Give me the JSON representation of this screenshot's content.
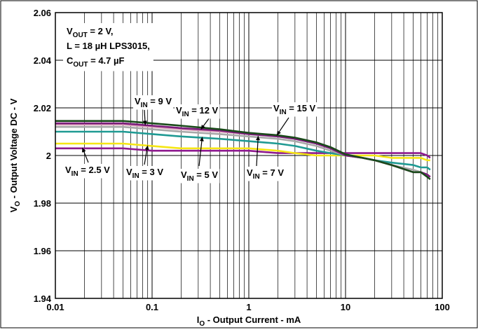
{
  "chart_data": {
    "type": "line",
    "title": "",
    "xlabel": {
      "main": "I",
      "sub": "O",
      "rest": " - Output Current - mA"
    },
    "ylabel": {
      "main": "V",
      "sub": "O",
      "rest": " - Output Voltage DC - V"
    },
    "x_scale": "log",
    "xlim": [
      0.01,
      100
    ],
    "ylim": [
      1.94,
      2.06
    ],
    "x_ticks": [
      0.01,
      0.1,
      1,
      10,
      100
    ],
    "x_tick_labels": [
      "0.01",
      "0.1",
      "1",
      "10",
      "100"
    ],
    "y_ticks": [
      1.94,
      1.96,
      1.98,
      2.0,
      2.02,
      2.04,
      2.06
    ],
    "y_tick_labels": [
      "1.94",
      "1.96",
      "1.98",
      "2",
      "2.02",
      "2.04",
      "2.06"
    ],
    "grid": true,
    "legend": "none",
    "conditions": [
      {
        "parts": [
          {
            "t": "V"
          },
          {
            "t": "OUT",
            "sub": true
          },
          {
            "t": " = 2 V,"
          }
        ]
      },
      {
        "parts": [
          {
            "t": "L = 18 µH LPS3015,"
          }
        ]
      },
      {
        "parts": [
          {
            "t": "C"
          },
          {
            "t": "OUT",
            "sub": true
          },
          {
            "t": " = 4.7 µF"
          }
        ]
      }
    ],
    "series": [
      {
        "name": "VIN = 2.5 V",
        "label_parts": [
          {
            "t": "V"
          },
          {
            "t": "IN",
            "sub": true
          },
          {
            "t": " = 2.5 V"
          }
        ],
        "color": "#8e1a8e",
        "x": [
          0.01,
          0.02,
          0.05,
          0.1,
          0.2,
          0.5,
          1,
          2,
          3,
          5,
          7,
          10,
          15,
          20,
          30,
          50,
          60,
          70,
          75
        ],
        "y": [
          2.003,
          2.003,
          2.003,
          2.002,
          2.002,
          2.002,
          2.002,
          2.001,
          2.001,
          2.001,
          2.001,
          2.001,
          2.001,
          2.001,
          2.001,
          2.001,
          2.001,
          2.0,
          1.999
        ]
      },
      {
        "name": "VIN = 3 V",
        "label_parts": [
          {
            "t": "V"
          },
          {
            "t": "IN",
            "sub": true
          },
          {
            "t": " = 3 V"
          }
        ],
        "color": "#f5e614",
        "x": [
          0.01,
          0.02,
          0.05,
          0.1,
          0.2,
          0.5,
          1,
          2,
          3,
          5,
          7,
          10,
          15,
          20,
          30,
          50,
          60,
          70,
          75
        ],
        "y": [
          2.005,
          2.005,
          2.005,
          2.004,
          2.003,
          2.003,
          2.003,
          2.002,
          2.001,
          2.0,
          2.0,
          2.0,
          2.0,
          2.0,
          1.999,
          1.999,
          1.999,
          1.998,
          1.998
        ]
      },
      {
        "name": "VIN = 5 V",
        "label_parts": [
          {
            "t": "V"
          },
          {
            "t": "IN",
            "sub": true
          },
          {
            "t": " = 5 V"
          }
        ],
        "color": "#1f9a93",
        "x": [
          0.01,
          0.02,
          0.05,
          0.1,
          0.2,
          0.5,
          1,
          2,
          3,
          5,
          7,
          10,
          15,
          20,
          30,
          50,
          60,
          70,
          75
        ],
        "y": [
          2.01,
          2.01,
          2.01,
          2.009,
          2.008,
          2.007,
          2.006,
          2.005,
          2.004,
          2.002,
          2.001,
          2.0,
          1.999,
          1.998,
          1.997,
          1.996,
          1.995,
          1.995,
          1.994
        ]
      },
      {
        "name": "VIN = 7 V",
        "label_parts": [
          {
            "t": "V"
          },
          {
            "t": "IN",
            "sub": true
          },
          {
            "t": " = 7 V"
          }
        ],
        "color": "#a8a8a8",
        "x": [
          0.01,
          0.02,
          0.05,
          0.1,
          0.2,
          0.5,
          1,
          2,
          3,
          5,
          7,
          10,
          15,
          20,
          30,
          50,
          60,
          70,
          75
        ],
        "y": [
          2.012,
          2.012,
          2.012,
          2.011,
          2.01,
          2.009,
          2.008,
          2.007,
          2.006,
          2.004,
          2.002,
          2.0,
          1.999,
          1.998,
          1.996,
          1.994,
          1.993,
          1.992,
          1.991
        ]
      },
      {
        "name": "VIN = 9 V",
        "label_parts": [
          {
            "t": "V"
          },
          {
            "t": "IN",
            "sub": true
          },
          {
            "t": " = 9 V"
          }
        ],
        "color": "#d9a0b8",
        "x": [
          0.01,
          0.02,
          0.05,
          0.1,
          0.2,
          0.5,
          1,
          2,
          3,
          5,
          7,
          10,
          15,
          20,
          30,
          50,
          60,
          70,
          75
        ],
        "y": [
          2.013,
          2.013,
          2.013,
          2.012,
          2.011,
          2.01,
          2.009,
          2.008,
          2.007,
          2.005,
          2.003,
          2.0,
          1.999,
          1.998,
          1.996,
          1.993,
          1.993,
          1.992,
          1.991
        ]
      },
      {
        "name": "VIN = 12 V",
        "label_parts": [
          {
            "t": "V"
          },
          {
            "t": "IN",
            "sub": true
          },
          {
            "t": " = 12 V"
          }
        ],
        "color": "#7a1a7a",
        "x": [
          0.01,
          0.02,
          0.05,
          0.1,
          0.2,
          0.5,
          1,
          2,
          3,
          5,
          7,
          10,
          15,
          20,
          30,
          50,
          60,
          70,
          75
        ],
        "y": [
          2.0135,
          2.0135,
          2.0135,
          2.0125,
          2.0115,
          2.0105,
          2.009,
          2.008,
          2.007,
          2.005,
          2.003,
          2.0,
          1.999,
          1.998,
          1.996,
          1.993,
          1.993,
          1.992,
          1.991
        ]
      },
      {
        "name": "VIN = 15 V",
        "label_parts": [
          {
            "t": "V"
          },
          {
            "t": "IN",
            "sub": true
          },
          {
            "t": " = 15 V"
          }
        ],
        "color": "#1a4a1a",
        "x": [
          0.01,
          0.02,
          0.05,
          0.1,
          0.2,
          0.5,
          1,
          2,
          3,
          5,
          7,
          10,
          15,
          20,
          30,
          50,
          60,
          70,
          75
        ],
        "y": [
          2.0145,
          2.0145,
          2.0145,
          2.0135,
          2.0125,
          2.011,
          2.0095,
          2.0085,
          2.0075,
          2.0055,
          2.0035,
          2.0005,
          1.999,
          1.998,
          1.996,
          1.993,
          1.993,
          1.991,
          1.99
        ]
      }
    ]
  }
}
